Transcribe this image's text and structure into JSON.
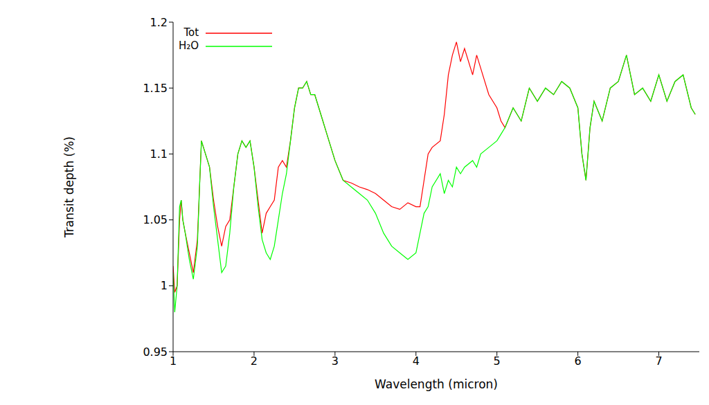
{
  "chart_data": {
    "type": "line",
    "x_label": "Wavelength (micron)",
    "y_label": "Transit depth (%)",
    "xlim": [
      1,
      7.5
    ],
    "xticks": [
      1,
      2,
      3,
      4,
      5,
      6,
      7
    ],
    "ylim": [
      0.95,
      1.2
    ],
    "yticks": [
      0.95,
      1,
      1.05,
      1.1,
      1.15,
      1.2
    ],
    "grid": false,
    "legend": "upper left",
    "x": [
      1.0,
      1.02,
      1.05,
      1.08,
      1.1,
      1.12,
      1.15,
      1.2,
      1.25,
      1.3,
      1.33,
      1.35,
      1.4,
      1.45,
      1.5,
      1.55,
      1.6,
      1.65,
      1.7,
      1.75,
      1.8,
      1.85,
      1.9,
      1.95,
      2.0,
      2.05,
      2.1,
      2.15,
      2.2,
      2.25,
      2.3,
      2.35,
      2.4,
      2.45,
      2.5,
      2.55,
      2.6,
      2.65,
      2.7,
      2.75,
      2.8,
      2.85,
      2.9,
      2.95,
      3.0,
      3.1,
      3.2,
      3.3,
      3.4,
      3.5,
      3.6,
      3.7,
      3.8,
      3.9,
      4.0,
      4.05,
      4.1,
      4.15,
      4.2,
      4.3,
      4.35,
      4.4,
      4.45,
      4.5,
      4.55,
      4.6,
      4.7,
      4.75,
      4.8,
      4.9,
      5.0,
      5.05,
      5.1,
      5.2,
      5.3,
      5.4,
      5.5,
      5.6,
      5.7,
      5.8,
      5.9,
      6.0,
      6.05,
      6.1,
      6.15,
      6.2,
      6.3,
      6.4,
      6.5,
      6.6,
      6.7,
      6.8,
      6.9,
      7.0,
      7.1,
      7.2,
      7.3,
      7.4,
      7.45
    ],
    "series": [
      {
        "name": "Tot",
        "color": "#ff0000",
        "line_style": "solid",
        "values": [
          1.015,
          0.995,
          1.0,
          1.05,
          1.065,
          1.05,
          1.04,
          1.025,
          1.01,
          1.035,
          1.08,
          1.11,
          1.1,
          1.09,
          1.065,
          1.045,
          1.03,
          1.045,
          1.05,
          1.075,
          1.1,
          1.11,
          1.105,
          1.11,
          1.09,
          1.065,
          1.04,
          1.055,
          1.06,
          1.065,
          1.09,
          1.095,
          1.09,
          1.11,
          1.135,
          1.15,
          1.15,
          1.155,
          1.145,
          1.145,
          1.135,
          1.125,
          1.115,
          1.105,
          1.095,
          1.08,
          1.078,
          1.075,
          1.073,
          1.07,
          1.065,
          1.06,
          1.058,
          1.063,
          1.06,
          1.06,
          1.08,
          1.1,
          1.105,
          1.11,
          1.13,
          1.16,
          1.175,
          1.185,
          1.17,
          1.18,
          1.16,
          1.175,
          1.165,
          1.145,
          1.135,
          1.125,
          1.12,
          1.135,
          1.125,
          1.15,
          1.14,
          1.15,
          1.145,
          1.155,
          1.15,
          1.135,
          1.1,
          1.08,
          1.12,
          1.14,
          1.125,
          1.15,
          1.155,
          1.175,
          1.145,
          1.15,
          1.14,
          1.16,
          1.14,
          1.155,
          1.16,
          1.135,
          1.13
        ]
      },
      {
        "name": "H₂O",
        "color": "#00ff00",
        "line_style": "solid",
        "values": [
          1.01,
          0.98,
          1.0,
          1.06,
          1.065,
          1.05,
          1.04,
          1.02,
          1.005,
          1.03,
          1.08,
          1.11,
          1.1,
          1.09,
          1.06,
          1.035,
          1.01,
          1.015,
          1.04,
          1.075,
          1.1,
          1.11,
          1.105,
          1.11,
          1.09,
          1.06,
          1.035,
          1.025,
          1.02,
          1.03,
          1.05,
          1.07,
          1.085,
          1.11,
          1.135,
          1.15,
          1.15,
          1.155,
          1.145,
          1.145,
          1.135,
          1.125,
          1.115,
          1.105,
          1.095,
          1.08,
          1.075,
          1.07,
          1.065,
          1.055,
          1.04,
          1.03,
          1.025,
          1.02,
          1.025,
          1.04,
          1.055,
          1.06,
          1.075,
          1.085,
          1.07,
          1.08,
          1.075,
          1.09,
          1.085,
          1.09,
          1.095,
          1.09,
          1.1,
          1.105,
          1.11,
          1.115,
          1.12,
          1.135,
          1.125,
          1.15,
          1.14,
          1.15,
          1.145,
          1.155,
          1.15,
          1.135,
          1.1,
          1.08,
          1.12,
          1.14,
          1.125,
          1.15,
          1.155,
          1.175,
          1.145,
          1.15,
          1.14,
          1.16,
          1.14,
          1.155,
          1.16,
          1.135,
          1.13
        ]
      }
    ]
  }
}
